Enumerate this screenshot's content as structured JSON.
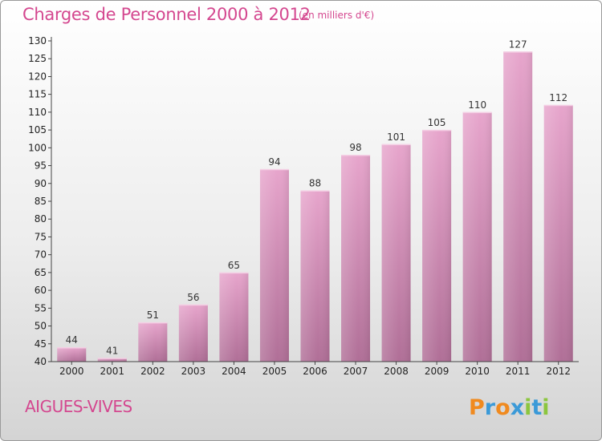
{
  "header": {
    "title": "Charges de Personnel 2000 à 2012",
    "subtitle": "(en milliers d'€)"
  },
  "footer": {
    "commune": "AIGUES-VIVES",
    "logo_text": "Proxiti"
  },
  "colors": {
    "bar_top": "#e7a5cc",
    "bar_bottom": "#b06f97",
    "title": "#d4478f",
    "axis": "#444444"
  },
  "chart_data": {
    "type": "bar",
    "title": "Charges de Personnel 2000 à 2012",
    "subtitle": "(en milliers d'€)",
    "categories": [
      "2000",
      "2001",
      "2002",
      "2003",
      "2004",
      "2005",
      "2006",
      "2007",
      "2008",
      "2009",
      "2010",
      "2011",
      "2012"
    ],
    "values": [
      44,
      41,
      51,
      56,
      65,
      94,
      88,
      98,
      101,
      105,
      110,
      127,
      112
    ],
    "ylim": [
      40,
      130
    ],
    "yticks": [
      40,
      45,
      50,
      55,
      60,
      65,
      70,
      75,
      80,
      85,
      90,
      95,
      100,
      105,
      110,
      115,
      120,
      125,
      130
    ],
    "xlabel": "",
    "ylabel": "",
    "grid": false,
    "data_labels": true
  }
}
